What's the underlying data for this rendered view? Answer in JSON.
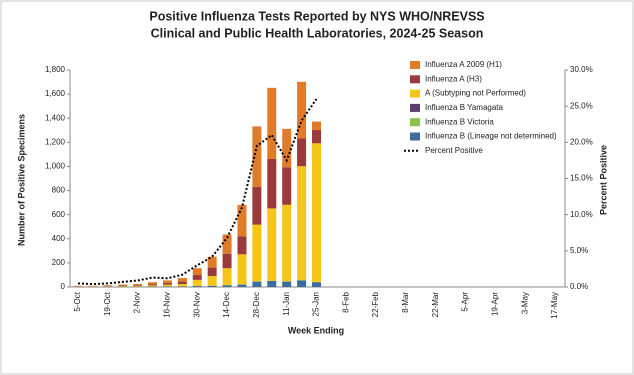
{
  "chart_data": {
    "type": "bar",
    "stacked": true,
    "title": [
      "Positive Influenza Tests Reported by NYS WHO/NREVSS",
      "Clinical and Public Health Laboratories, 2024-25 Season"
    ],
    "x_label": "Week Ending",
    "y_label": "Number of Positive Specimens",
    "y2_label": "Percent Positive",
    "categories": [
      "5-Oct",
      null,
      "19-Oct",
      null,
      "2-Nov",
      null,
      "16-Nov",
      null,
      "30-Nov",
      null,
      "14-Dec",
      null,
      "28-Dec",
      null,
      "11-Jan",
      null,
      "25-Jan",
      null,
      "8-Feb",
      null,
      "22-Feb",
      null,
      "8-Mar",
      null,
      "22-Mar",
      null,
      "5-Apr",
      null,
      "19-Apr",
      null,
      "3-May",
      null,
      "17-May"
    ],
    "ylim": [
      0,
      1800
    ],
    "yticks": [
      0,
      200,
      400,
      600,
      800,
      {
        "value": 1000,
        "label": "1,000"
      },
      {
        "value": 1200,
        "label": "1,200"
      },
      {
        "value": 1400,
        "label": "1,400"
      },
      {
        "value": 1600,
        "label": "1,600"
      },
      {
        "value": 1800,
        "label": "1,800"
      }
    ],
    "y2lim": [
      0,
      30
    ],
    "y2ticks": [
      {
        "value": 0,
        "label": "0.0%"
      },
      {
        "value": 5,
        "label": "5.0%"
      },
      {
        "value": 10,
        "label": "10.0%"
      },
      {
        "value": 15,
        "label": "15.0%"
      },
      {
        "value": 20,
        "label": "20.0%"
      },
      {
        "value": 25,
        "label": "25.0%"
      },
      {
        "value": 30,
        "label": "30.0%"
      }
    ],
    "legend": "upper right",
    "series": [
      {
        "name": "Influenza B (Lineage not determined)",
        "color": "#3e6d9c",
        "values": [
          2,
          2,
          3,
          3,
          3,
          4,
          5,
          5,
          8,
          10,
          15,
          20,
          45,
          50,
          45,
          55,
          40,
          null,
          null,
          null,
          null,
          null,
          null,
          null,
          null,
          null,
          null,
          null,
          null,
          null,
          null,
          null,
          null
        ]
      },
      {
        "name": "Influenza B Victoria",
        "color": "#8bc34a",
        "values": [
          0,
          0,
          0,
          0,
          0,
          0,
          0,
          0,
          1,
          1,
          1,
          1,
          2,
          2,
          2,
          2,
          2,
          null,
          null,
          null,
          null,
          null,
          null,
          null,
          null,
          null,
          null,
          null,
          null,
          null,
          null,
          null,
          null
        ]
      },
      {
        "name": "Influenza B Yamagata",
        "color": "#5b3f6e",
        "values": [
          0,
          0,
          0,
          0,
          0,
          0,
          0,
          0,
          0,
          0,
          0,
          0,
          0,
          0,
          0,
          0,
          0,
          null,
          null,
          null,
          null,
          null,
          null,
          null,
          null,
          null,
          null,
          null,
          null,
          null,
          null,
          null,
          null
        ]
      },
      {
        "name": "A (Subtyping not Performed)",
        "color": "#f5c518",
        "values": [
          3,
          3,
          4,
          5,
          6,
          10,
          15,
          20,
          50,
          80,
          140,
          250,
          470,
          600,
          635,
          945,
          1150,
          null,
          null,
          null,
          null,
          null,
          null,
          null,
          null,
          null,
          null,
          null,
          null,
          null,
          null,
          null,
          null
        ]
      },
      {
        "name": "Influenza A (H3)",
        "color": "#9b3a3a",
        "values": [
          2,
          2,
          3,
          5,
          6,
          10,
          15,
          20,
          40,
          70,
          120,
          150,
          315,
          410,
          310,
          230,
          110,
          null,
          null,
          null,
          null,
          null,
          null,
          null,
          null,
          null,
          null,
          null,
          null,
          null,
          null,
          null,
          null
        ]
      },
      {
        "name": "Influenza A 2009 (H1)",
        "color": "#e07b2a",
        "values": [
          3,
          3,
          5,
          7,
          10,
          16,
          20,
          30,
          57,
          90,
          160,
          260,
          500,
          590,
          320,
          470,
          70,
          null,
          null,
          null,
          null,
          null,
          null,
          null,
          null,
          null,
          null,
          null,
          null,
          null,
          null,
          null,
          null
        ]
      },
      {
        "name": "Percent Positive",
        "type": "line",
        "axis": "y2",
        "color": "#000000",
        "dotted": true,
        "values": [
          0.5,
          0.4,
          0.5,
          0.7,
          0.9,
          1.3,
          1.2,
          1.7,
          3.0,
          4.2,
          6.8,
          11.0,
          19.5,
          21.0,
          17.5,
          23.0,
          26.0,
          null,
          null,
          null,
          null,
          null,
          null,
          null,
          null,
          null,
          null,
          null,
          null,
          null,
          null,
          null,
          null
        ]
      }
    ]
  }
}
